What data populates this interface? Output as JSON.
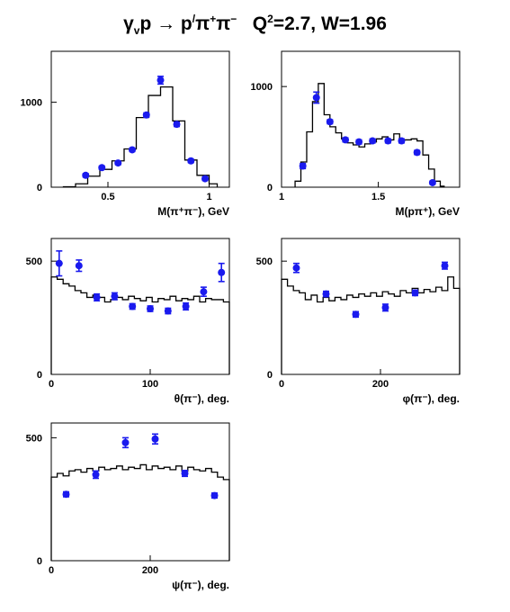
{
  "header": {
    "title_prefix": "γ",
    "title_sub": "v",
    "title_mid": "p → p",
    "title_sup1": "/",
    "title_pi": "π",
    "title_sup2": "+",
    "title_pi2": "π",
    "title_sup3": "−",
    "title_q": "   Q",
    "title_sup4": "2",
    "title_rest": "=2.7, W=1.96"
  },
  "colors": {
    "data_points": "#1a1aee",
    "histogram": "#000000",
    "axes": "#000000"
  },
  "chart_data": [
    {
      "type": "line",
      "xlabel": "M(π⁺π⁻), GeV",
      "xlim": [
        0.22,
        1.1
      ],
      "ylim": [
        0,
        1600
      ],
      "xticks": [
        0.5,
        1
      ],
      "xticklabels": [
        "0.5",
        "1"
      ],
      "yticks": [
        0,
        1000
      ],
      "yticklabels": [
        "0",
        "1000"
      ],
      "histogram": {
        "edges": [
          0.28,
          0.34,
          0.4,
          0.46,
          0.52,
          0.58,
          0.64,
          0.7,
          0.76,
          0.82,
          0.88,
          0.94,
          1.0,
          1.04
        ],
        "values": [
          5,
          40,
          130,
          210,
          310,
          450,
          820,
          1080,
          1180,
          780,
          320,
          140,
          40
        ]
      },
      "points": [
        {
          "x": 0.39,
          "y": 140,
          "err": 20
        },
        {
          "x": 0.47,
          "y": 230,
          "err": 20
        },
        {
          "x": 0.55,
          "y": 285,
          "err": 20
        },
        {
          "x": 0.62,
          "y": 440,
          "err": 20
        },
        {
          "x": 0.69,
          "y": 850,
          "err": 25
        },
        {
          "x": 0.76,
          "y": 1260,
          "err": 45
        },
        {
          "x": 0.84,
          "y": 740,
          "err": 25
        },
        {
          "x": 0.91,
          "y": 310,
          "err": 20
        },
        {
          "x": 0.98,
          "y": 100,
          "err": 20
        }
      ]
    },
    {
      "type": "line",
      "xlabel": "M(pπ⁺), GeV",
      "xlim": [
        1.0,
        1.92
      ],
      "ylim": [
        0,
        1350
      ],
      "xticks": [
        1,
        1.5
      ],
      "xticklabels": [
        "1",
        "1.5"
      ],
      "yticks": [
        0,
        1000
      ],
      "yticklabels": [
        "0",
        "1000"
      ],
      "histogram": {
        "edges": [
          1.07,
          1.1,
          1.13,
          1.16,
          1.19,
          1.22,
          1.25,
          1.28,
          1.31,
          1.34,
          1.37,
          1.4,
          1.43,
          1.46,
          1.49,
          1.52,
          1.55,
          1.58,
          1.61,
          1.64,
          1.67,
          1.7,
          1.73,
          1.76,
          1.79,
          1.82,
          1.84
        ],
        "values": [
          60,
          250,
          550,
          850,
          1030,
          720,
          600,
          540,
          480,
          440,
          420,
          400,
          430,
          450,
          480,
          500,
          470,
          530,
          470,
          470,
          480,
          460,
          320,
          180,
          60,
          10
        ]
      },
      "points": [
        {
          "x": 1.11,
          "y": 210,
          "err": 25
        },
        {
          "x": 1.18,
          "y": 890,
          "err": 55
        },
        {
          "x": 1.25,
          "y": 650,
          "err": 20
        },
        {
          "x": 1.33,
          "y": 470,
          "err": 20
        },
        {
          "x": 1.4,
          "y": 450,
          "err": 20
        },
        {
          "x": 1.47,
          "y": 460,
          "err": 20
        },
        {
          "x": 1.55,
          "y": 460,
          "err": 20
        },
        {
          "x": 1.62,
          "y": 460,
          "err": 20
        },
        {
          "x": 1.7,
          "y": 345,
          "err": 20
        },
        {
          "x": 1.78,
          "y": 45,
          "err": 15
        }
      ]
    },
    {
      "type": "line",
      "xlabel": "θ(π⁻), deg.",
      "xlim": [
        0,
        180
      ],
      "ylim": [
        0,
        600
      ],
      "xticks": [
        0,
        100
      ],
      "xticklabels": [
        "0",
        "100"
      ],
      "yticks": [
        0,
        500
      ],
      "yticklabels": [
        "0",
        "500"
      ],
      "histogram": {
        "edges": [
          0,
          6,
          12,
          18,
          24,
          30,
          36,
          42,
          48,
          54,
          60,
          66,
          72,
          78,
          84,
          90,
          96,
          102,
          108,
          114,
          120,
          126,
          132,
          138,
          144,
          150,
          156,
          162,
          168,
          174,
          180
        ],
        "values": [
          430,
          420,
          400,
          390,
          370,
          360,
          340,
          350,
          340,
          320,
          330,
          340,
          330,
          345,
          335,
          325,
          340,
          320,
          335,
          330,
          345,
          325,
          335,
          330,
          345,
          320,
          335,
          330,
          330,
          320
        ]
      },
      "points": [
        {
          "x": 8,
          "y": 490,
          "err": 55
        },
        {
          "x": 28,
          "y": 480,
          "err": 25
        },
        {
          "x": 46,
          "y": 340,
          "err": 15
        },
        {
          "x": 64,
          "y": 345,
          "err": 15
        },
        {
          "x": 82,
          "y": 300,
          "err": 12
        },
        {
          "x": 100,
          "y": 290,
          "err": 12
        },
        {
          "x": 118,
          "y": 280,
          "err": 12
        },
        {
          "x": 136,
          "y": 300,
          "err": 15
        },
        {
          "x": 154,
          "y": 365,
          "err": 20
        },
        {
          "x": 172,
          "y": 450,
          "err": 40
        }
      ]
    },
    {
      "type": "line",
      "xlabel": "φ(π⁻), deg.",
      "xlim": [
        0,
        360
      ],
      "ylim": [
        0,
        600
      ],
      "xticks": [
        0,
        200
      ],
      "xticklabels": [
        "0",
        "200"
      ],
      "yticks": [
        0,
        500
      ],
      "yticklabels": [
        "0",
        "500"
      ],
      "histogram": {
        "edges": [
          0,
          12,
          24,
          36,
          48,
          60,
          72,
          84,
          96,
          108,
          120,
          132,
          144,
          156,
          168,
          180,
          192,
          204,
          216,
          228,
          240,
          252,
          264,
          276,
          288,
          300,
          312,
          324,
          336,
          348,
          360
        ],
        "values": [
          420,
          390,
          370,
          360,
          330,
          350,
          320,
          340,
          325,
          340,
          330,
          350,
          340,
          355,
          345,
          360,
          345,
          365,
          355,
          345,
          370,
          360,
          380,
          360,
          375,
          365,
          385,
          370,
          430,
          380
        ]
      },
      "points": [
        {
          "x": 30,
          "y": 470,
          "err": 20
        },
        {
          "x": 90,
          "y": 355,
          "err": 12
        },
        {
          "x": 150,
          "y": 265,
          "err": 12
        },
        {
          "x": 210,
          "y": 295,
          "err": 15
        },
        {
          "x": 270,
          "y": 360,
          "err": 12
        },
        {
          "x": 330,
          "y": 480,
          "err": 15
        }
      ]
    },
    {
      "type": "line",
      "xlabel": "ψ(π⁻), deg.",
      "xlim": [
        0,
        360
      ],
      "ylim": [
        0,
        560
      ],
      "xticks": [
        0,
        200
      ],
      "xticklabels": [
        "0",
        "200"
      ],
      "yticks": [
        0,
        500
      ],
      "yticklabels": [
        "0",
        "500"
      ],
      "histogram": {
        "edges": [
          0,
          12,
          24,
          36,
          48,
          60,
          72,
          84,
          96,
          108,
          120,
          132,
          144,
          156,
          168,
          180,
          192,
          204,
          216,
          228,
          240,
          252,
          264,
          276,
          288,
          300,
          312,
          324,
          336,
          348,
          360
        ],
        "values": [
          340,
          355,
          345,
          365,
          370,
          360,
          375,
          365,
          380,
          370,
          375,
          385,
          370,
          380,
          375,
          390,
          370,
          385,
          375,
          380,
          370,
          385,
          365,
          380,
          370,
          365,
          375,
          360,
          340,
          330
        ]
      },
      "points": [
        {
          "x": 30,
          "y": 270,
          "err": 10
        },
        {
          "x": 90,
          "y": 350,
          "err": 15
        },
        {
          "x": 150,
          "y": 480,
          "err": 20
        },
        {
          "x": 210,
          "y": 495,
          "err": 20
        },
        {
          "x": 270,
          "y": 355,
          "err": 12
        },
        {
          "x": 330,
          "y": 265,
          "err": 10
        }
      ]
    }
  ]
}
